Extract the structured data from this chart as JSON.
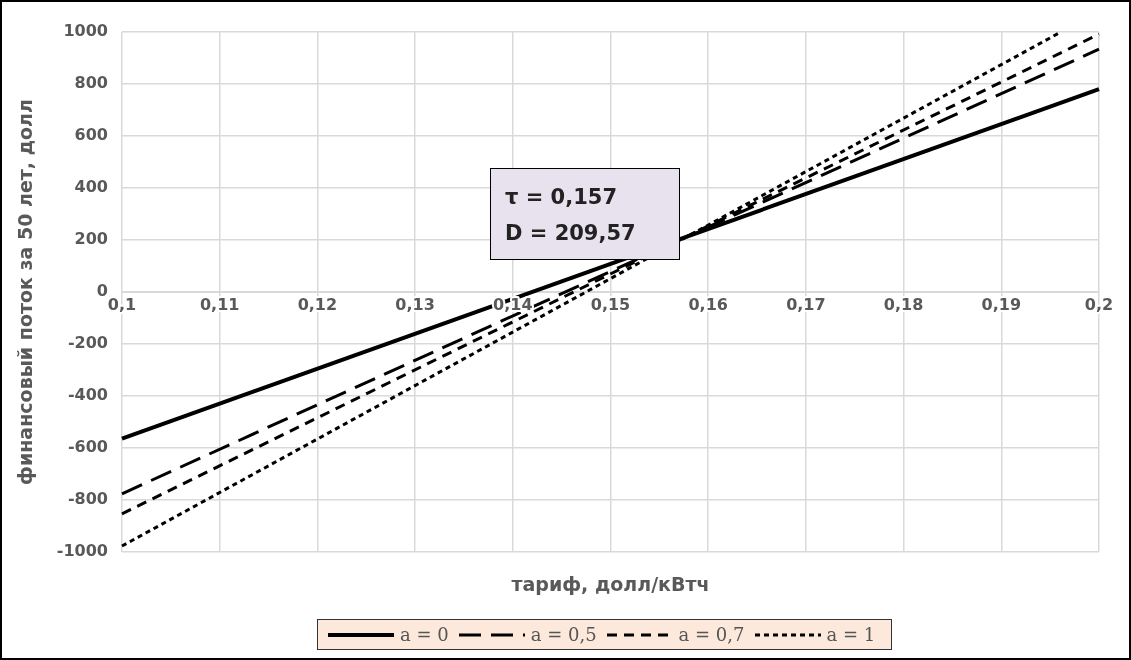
{
  "chart_data": {
    "type": "line",
    "xlabel": "тариф, долл/кВтч",
    "ylabel": "финансовый поток за 50 лет, долл",
    "annotations": [
      "τ = 0,157",
      "D = 209,57"
    ],
    "xlim": [
      0.1,
      0.2
    ],
    "xticks": [
      {
        "value": 0.1,
        "label": "0,1"
      },
      {
        "value": 0.11,
        "label": "0,11"
      },
      {
        "value": 0.12,
        "label": "0,12"
      },
      {
        "value": 0.13,
        "label": "0,13"
      },
      {
        "value": 0.14,
        "label": "0,14"
      },
      {
        "value": 0.15,
        "label": "0,15"
      },
      {
        "value": 0.16,
        "label": "0,16"
      },
      {
        "value": 0.17,
        "label": "0,17"
      },
      {
        "value": 0.18,
        "label": "0,18"
      },
      {
        "value": 0.19,
        "label": "0,19"
      },
      {
        "value": 0.2,
        "label": "0,2"
      }
    ],
    "ylim": [
      -1000,
      1000
    ],
    "yticks": [
      -1000,
      -800,
      -600,
      -400,
      -200,
      0,
      200,
      400,
      600,
      800,
      1000
    ],
    "grid": true,
    "legend": "bottom",
    "marker": "none",
    "series": [
      {
        "name": "a = 0",
        "color": "#000000",
        "line_style": "solid",
        "x": [
          0.1,
          0.2
        ],
        "values": [
          -564,
          780
        ]
      },
      {
        "name": "a = 0,5",
        "color": "#000000",
        "line_style": "longdash",
        "x": [
          0.1,
          0.2
        ],
        "values": [
          -776,
          934
        ]
      },
      {
        "name": "a = 0,7",
        "color": "#000000",
        "line_style": "dashed",
        "x": [
          0.1,
          0.2
        ],
        "values": [
          -853,
          992
        ]
      },
      {
        "name": "a = 1",
        "color": "#000000",
        "line_style": "dotted",
        "x": [
          0.1,
          0.1961
        ],
        "values": [
          -977,
          1000
        ]
      }
    ]
  }
}
